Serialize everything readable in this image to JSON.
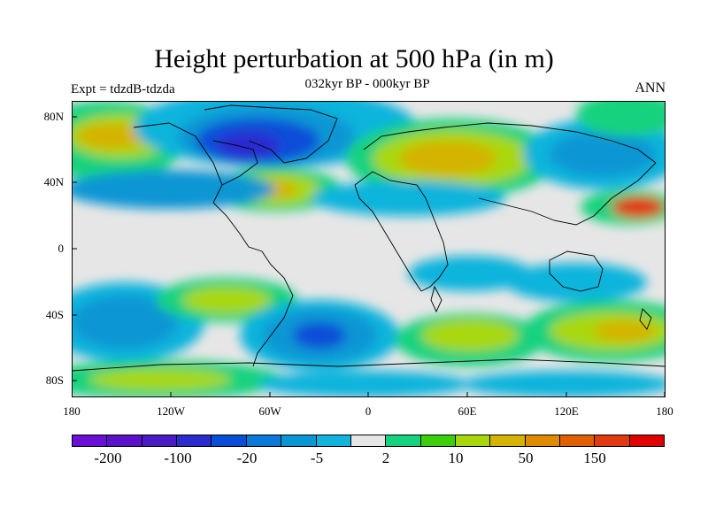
{
  "title": "Height perturbation at 500 hPa (in m)",
  "subtitle": "032kyr BP - 000kyr BP",
  "experiment": "Expt = tdzdB-tdzda",
  "season": "ANN",
  "lat_ticks": [
    "80N",
    "40N",
    "0",
    "40S",
    "80S"
  ],
  "lon_ticks": [
    "180",
    "120W",
    "60W",
    "0",
    "60E",
    "120E",
    "180"
  ],
  "colorbar": {
    "colors": [
      "#6a0fd6",
      "#5b10cc",
      "#4a1bc6",
      "#2a2cd0",
      "#0a4ed8",
      "#0a79d8",
      "#0896d4",
      "#10b4dc",
      "#e6e6e6",
      "#14d27e",
      "#3cd00c",
      "#a8d80c",
      "#d4b400",
      "#e08a00",
      "#e06000",
      "#e03a10",
      "#e00000"
    ],
    "labels": [
      "-200",
      "-100",
      "-20",
      "-5",
      "2",
      "10",
      "50",
      "150"
    ]
  },
  "legend_colors": {
    "neutral": "#e6e6e6"
  }
}
